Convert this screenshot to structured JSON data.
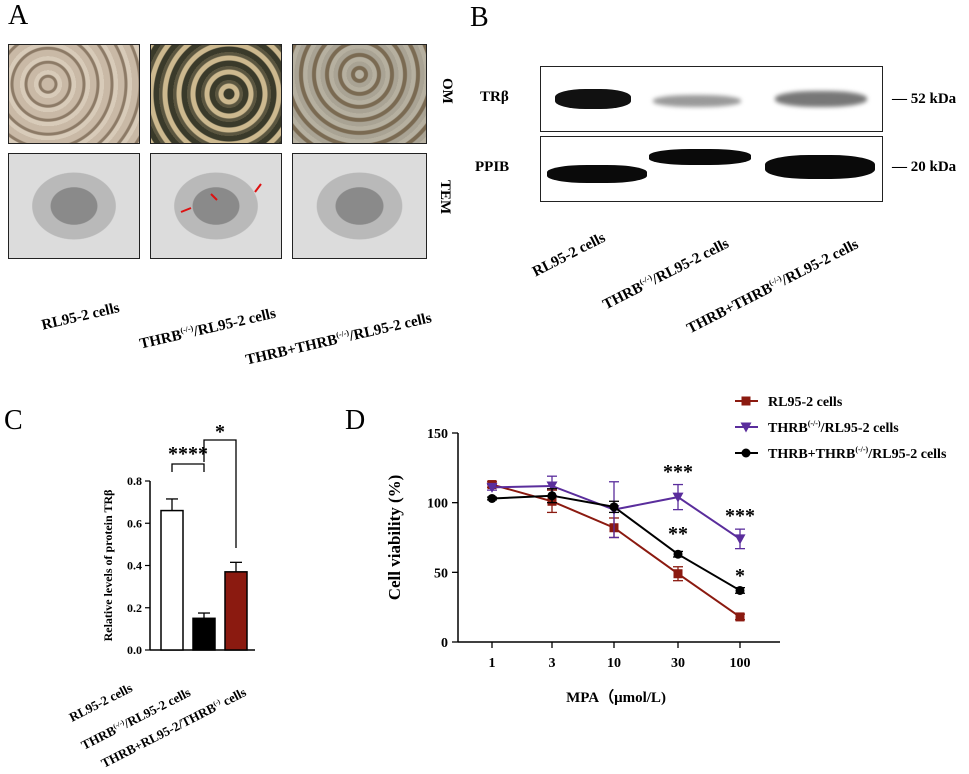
{
  "panels": {
    "a": "A",
    "b": "B",
    "c": "C",
    "d": "D"
  },
  "panel_a": {
    "row_labels": [
      "OM",
      "TEM"
    ],
    "columns": [
      "RL95-2 cells",
      "THRB",
      "(-/-)",
      "/RL95-2 cells",
      "THRB+THRB",
      "(-/-)",
      "/RL95-2 cells"
    ]
  },
  "panel_b": {
    "proteins": [
      "TRβ",
      "PPIB"
    ],
    "sizes": [
      "— 52 kDa",
      "— 20 kDa"
    ],
    "lanes": [
      "RL95-2 cells",
      "THRB",
      "(-/-)",
      "/RL95-2 cells",
      "THRB+THRB",
      "(-/-)",
      "/RL95-2 cells"
    ]
  },
  "chart_data": [
    {
      "type": "bar",
      "ylabel": "Relative levels of protein TRβ",
      "ylim": [
        0,
        0.8
      ],
      "yticks": [
        "0.0",
        "0.2",
        "0.4",
        "0.6",
        "0.8"
      ],
      "categories": [
        "RL95-2 cells",
        "THRB(-/-)/RL95-2 cells",
        "THRB+RL95-2/THRB(-) cells"
      ],
      "category_labels": [
        {
          "main": "RL95-2 cells"
        },
        {
          "pre": "THRB",
          "sup": "(-/-)",
          "post": "/RL95-2 cells"
        },
        {
          "pre": "THRB+RL95-2/THRB",
          "sup": "(-)",
          "post": " cells"
        }
      ],
      "values": [
        0.66,
        0.15,
        0.37
      ],
      "errors": [
        0.055,
        0.025,
        0.045
      ],
      "colors": [
        "#ffffff",
        "#000000",
        "#8b1a10"
      ],
      "significance": [
        "****",
        "*"
      ]
    },
    {
      "type": "line",
      "xlabel": "MPA（μmol/L)",
      "ylabel": "Cell viability (%)",
      "ylim": [
        0,
        150
      ],
      "yticks": [
        "0",
        "50",
        "100",
        "150"
      ],
      "x": [
        "1",
        "3",
        "10",
        "30",
        "100"
      ],
      "series": [
        {
          "name": "RL95-2 cells",
          "name_pre": "RL95-2 cells",
          "name_sup": "",
          "name_post": "",
          "color": "#8b1a10",
          "marker": "square",
          "values": [
            113,
            101,
            82,
            49,
            18
          ],
          "errors": [
            2,
            8,
            7,
            5,
            2
          ]
        },
        {
          "name": "THRB(-/-)/RL95-2 cells",
          "name_pre": "THRB",
          "name_sup": "(-/-)",
          "name_post": "/RL95-2 cells",
          "color": "#5a2d9c",
          "marker": "triangle-down",
          "values": [
            111,
            112,
            95,
            104,
            74
          ],
          "errors": [
            2,
            7,
            20,
            9,
            7
          ]
        },
        {
          "name": "THRB+THRB(-/-)/RL95-2 cells",
          "name_pre": "THRB+THRB",
          "name_sup": "(-/-)",
          "name_post": "/RL95-2 cells",
          "color": "#000000",
          "marker": "circle",
          "values": [
            103,
            105,
            97,
            63,
            37
          ],
          "errors": [
            1,
            5,
            4,
            2,
            2
          ]
        }
      ],
      "annotations": [
        {
          "x": "30",
          "text": "***"
        },
        {
          "x": "30",
          "text": "**"
        },
        {
          "x": "100",
          "text": "***"
        },
        {
          "x": "100",
          "text": "*"
        }
      ]
    }
  ]
}
